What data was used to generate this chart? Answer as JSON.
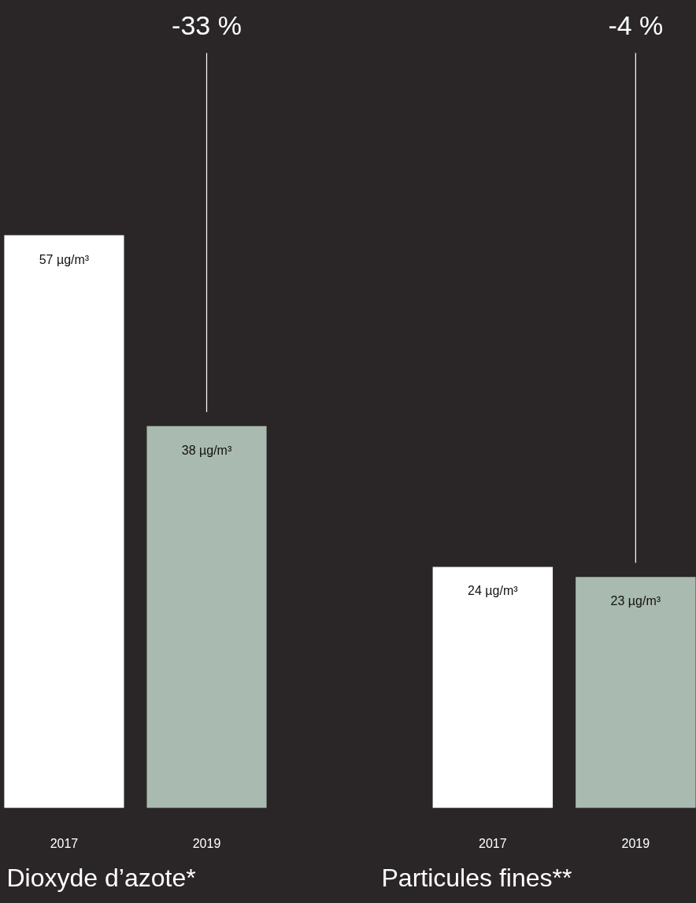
{
  "chart_data": [
    {
      "type": "bar",
      "title": "Dioxyde d’azote*",
      "categories": [
        "2017",
        "2019"
      ],
      "values": [
        57,
        38
      ],
      "colors": [
        "#ffffff",
        "#a9bab0"
      ],
      "value_labels": [
        "57 µg/m³",
        "38 µg/m³"
      ],
      "annotations": [
        "-33 %"
      ],
      "grid": false,
      "legend": false
    },
    {
      "type": "bar",
      "title": "Particules fines**",
      "categories": [
        "2017",
        "2019"
      ],
      "values": [
        24,
        23
      ],
      "colors": [
        "#ffffff",
        "#a9bab0"
      ],
      "value_labels": [
        "24 µg/m³",
        "23 µg/m³"
      ],
      "annotations": [
        "-4 %"
      ],
      "grid": false,
      "legend": false
    }
  ]
}
